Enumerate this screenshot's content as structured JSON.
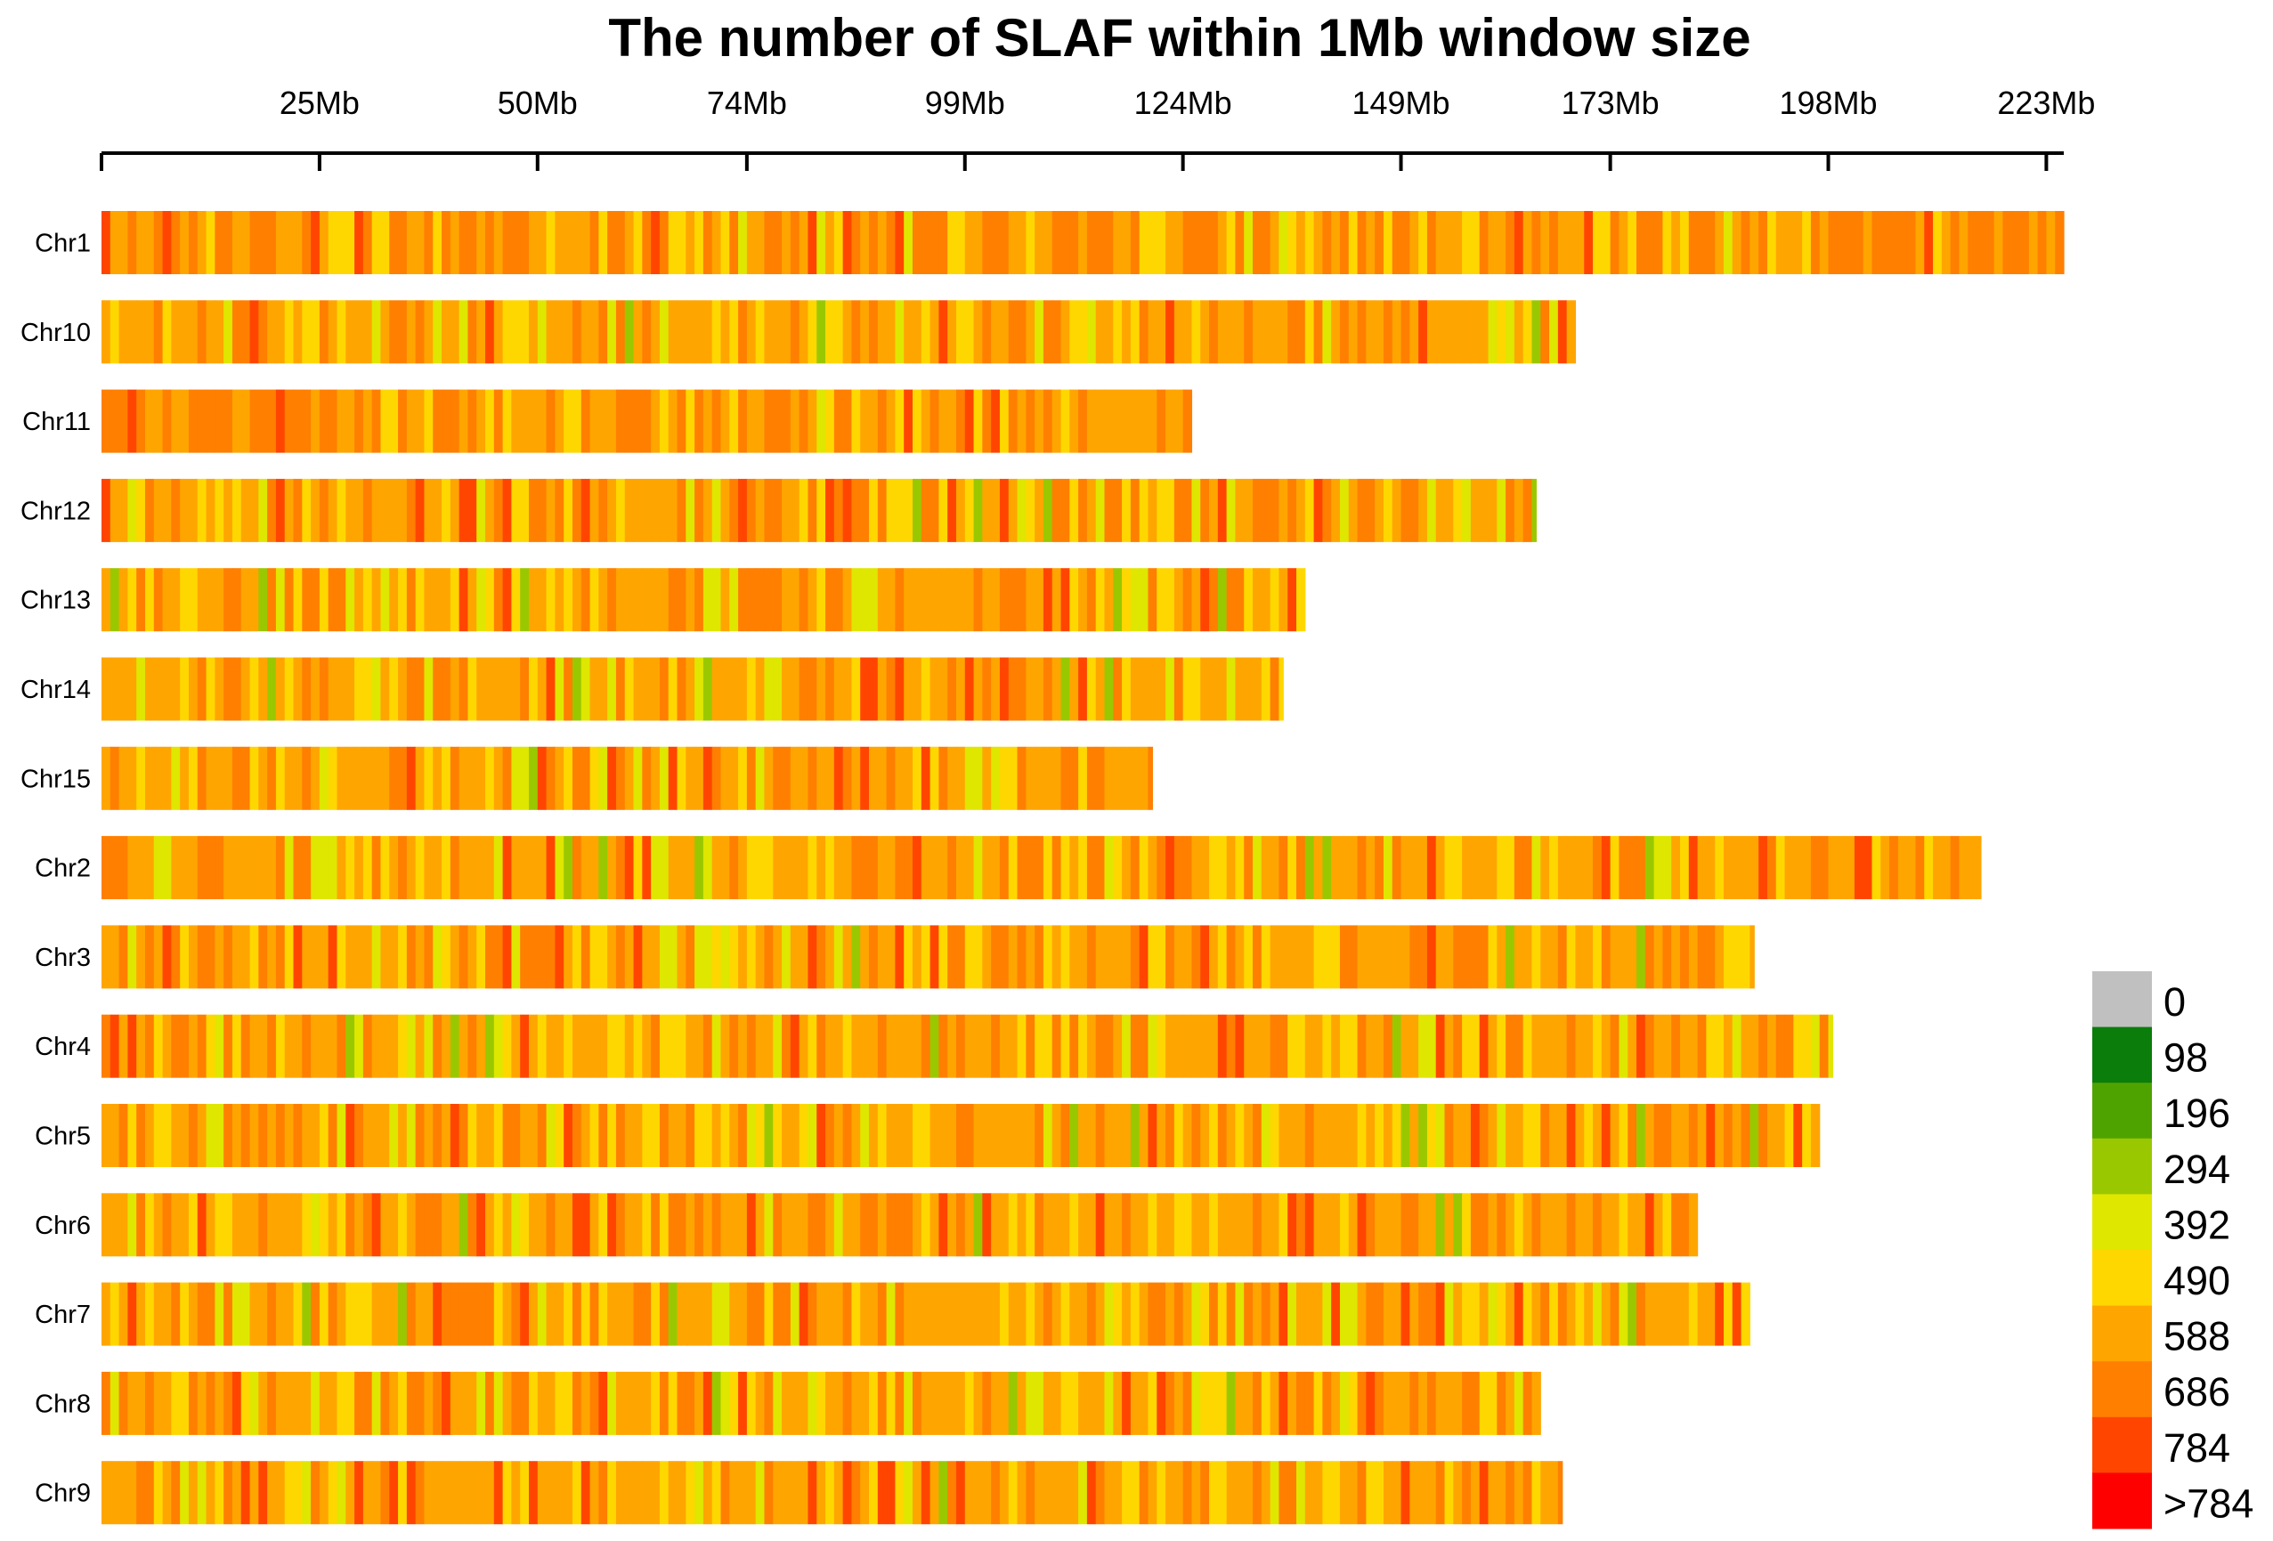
{
  "chart_data": {
    "type": "heatmap",
    "title": "The number of SLAF within 1Mb window size",
    "x_axis": {
      "unit": "Mb",
      "range_mb": [
        0,
        225
      ],
      "ticks": [
        {
          "value": 25,
          "label": "25Mb"
        },
        {
          "value": 50,
          "label": "50Mb"
        },
        {
          "value": 74,
          "label": "74Mb"
        },
        {
          "value": 99,
          "label": "99Mb"
        },
        {
          "value": 124,
          "label": "124Mb"
        },
        {
          "value": 149,
          "label": "149Mb"
        },
        {
          "value": 173,
          "label": "173Mb"
        },
        {
          "value": 198,
          "label": "198Mb"
        },
        {
          "value": 223,
          "label": "223Mb"
        }
      ]
    },
    "window_size_mb": 1,
    "chromosomes": [
      {
        "name": "Chr1",
        "length_mb": 225
      },
      {
        "name": "Chr10",
        "length_mb": 169
      },
      {
        "name": "Chr11",
        "length_mb": 125
      },
      {
        "name": "Chr12",
        "length_mb": 164.5
      },
      {
        "name": "Chr13",
        "length_mb": 138
      },
      {
        "name": "Chr14",
        "length_mb": 135.5
      },
      {
        "name": "Chr15",
        "length_mb": 120.5
      },
      {
        "name": "Chr2",
        "length_mb": 215.5
      },
      {
        "name": "Chr3",
        "length_mb": 189.5
      },
      {
        "name": "Chr4",
        "length_mb": 198.5
      },
      {
        "name": "Chr5",
        "length_mb": 197
      },
      {
        "name": "Chr6",
        "length_mb": 183
      },
      {
        "name": "Chr7",
        "length_mb": 189
      },
      {
        "name": "Chr8",
        "length_mb": 165
      },
      {
        "name": "Chr9",
        "length_mb": 167.5
      }
    ],
    "dominant_bins": {
      "Chr1": "686",
      "Chr10": "588",
      "Chr11": "686",
      "Chr12": "588",
      "Chr13": "588",
      "Chr14": "588",
      "Chr15": "588",
      "Chr2": "588",
      "Chr3": "588",
      "Chr4": "588",
      "Chr5": "588",
      "Chr6": "588",
      "Chr7": "588",
      "Chr8": "588",
      "Chr9": "588"
    },
    "legend": {
      "title": "",
      "placement": "bottom-right",
      "bins": [
        {
          "label": "0",
          "color": "#c0c0c0"
        },
        {
          "label": "98",
          "color": "#0a7d0a"
        },
        {
          "label": "196",
          "color": "#4fa300"
        },
        {
          "label": "294",
          "color": "#9ac800"
        },
        {
          "label": "392",
          "color": "#dfe600"
        },
        {
          "label": "490",
          "color": "#ffd700"
        },
        {
          "label": "588",
          "color": "#ffa500"
        },
        {
          "label": "686",
          "color": "#ff7f00"
        },
        {
          "label": "784",
          "color": "#ff4500"
        },
        {
          "label": ">784",
          "color": "#ff0000"
        }
      ]
    }
  }
}
